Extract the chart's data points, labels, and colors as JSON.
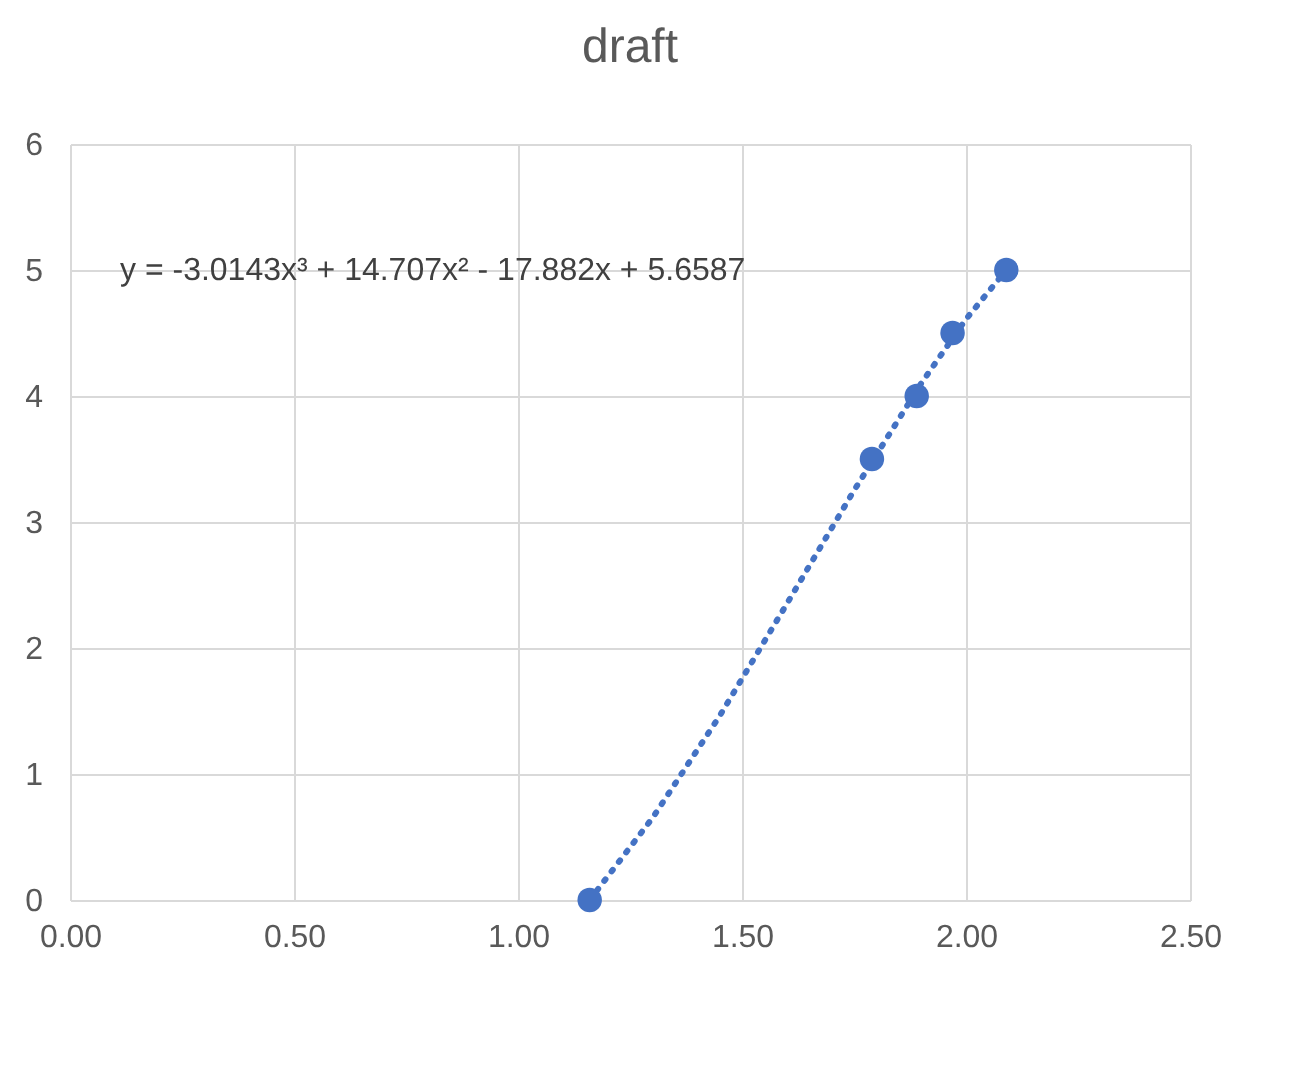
{
  "chart_data": {
    "type": "scatter",
    "title": "draft",
    "series": [
      {
        "type": "scatter",
        "color": "#4472c4",
        "x": [
          1.16,
          1.79,
          1.89,
          1.97,
          2.09
        ],
        "values": [
          0,
          3.5,
          4,
          4.5,
          5
        ],
        "marker": "circle"
      },
      {
        "type": "line",
        "color": "#4472c4",
        "line_style": "dotted",
        "x": [
          1.16,
          1.3,
          1.45,
          1.6,
          1.75,
          1.9,
          2.0,
          2.09
        ],
        "values": [
          0,
          0.65,
          1.46,
          2.35,
          3.25,
          4.1,
          4.61,
          5.0
        ]
      }
    ],
    "xlim": [
      0,
      2.5
    ],
    "xticks": [
      {
        "value": 0,
        "label": "0.00"
      },
      {
        "value": 0.5,
        "label": "0.50"
      },
      {
        "value": 1,
        "label": "1.00"
      },
      {
        "value": 1.5,
        "label": "1.50"
      },
      {
        "value": 2,
        "label": "2.00"
      },
      {
        "value": 2.5,
        "label": "2.50"
      }
    ],
    "ylim": [
      0,
      6
    ],
    "yticks": [
      0,
      1,
      2,
      3,
      4,
      5,
      6
    ],
    "grid": true,
    "annotations": [
      "y = -3.0143x³ + 14.707x² - 17.882x + 5.6587"
    ]
  }
}
